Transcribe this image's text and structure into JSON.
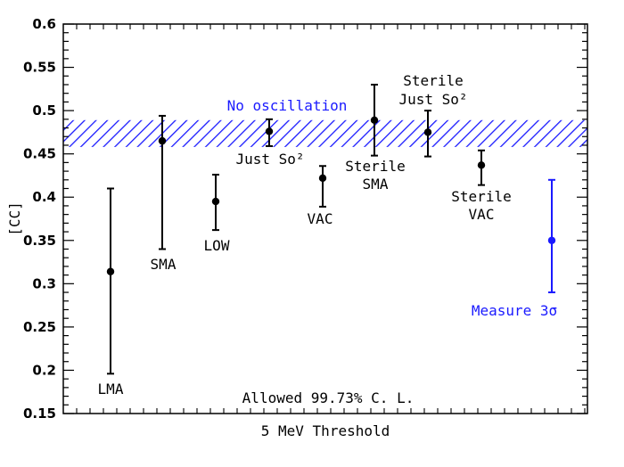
{
  "chart_data": {
    "type": "scatter",
    "title": "",
    "xlabel": "5 MeV Threshold",
    "ylabel": "[CC]",
    "ylim": [
      0.15,
      0.6
    ],
    "y_ticks": [
      "0.15",
      "0.2",
      "0.25",
      "0.3",
      "0.35",
      "0.4",
      "0.45",
      "0.5",
      "0.55",
      "0.6"
    ],
    "grid": false,
    "band": {
      "label": "No oscillation",
      "low": 0.458,
      "high": 0.489,
      "color": "#1a1aff"
    },
    "annotation": "Allowed 99.73% C. L.",
    "points": [
      {
        "label": [
          "LMA"
        ],
        "index": 1,
        "y": 0.314,
        "ylow": 0.196,
        "yhigh": 0.41,
        "color": "#000000"
      },
      {
        "label": [
          "SMA"
        ],
        "index": 2,
        "y": 0.465,
        "ylow": 0.34,
        "yhigh": 0.494,
        "color": "#000000"
      },
      {
        "label": [
          "LOW"
        ],
        "index": 3,
        "y": 0.395,
        "ylow": 0.362,
        "yhigh": 0.426,
        "color": "#000000"
      },
      {
        "label": [
          "Just So²"
        ],
        "index": 4,
        "y": 0.476,
        "ylow": 0.459,
        "yhigh": 0.49,
        "color": "#000000"
      },
      {
        "label": [
          "VAC"
        ],
        "index": 5,
        "y": 0.422,
        "ylow": 0.389,
        "yhigh": 0.436,
        "color": "#000000"
      },
      {
        "label": [
          "Sterile",
          "SMA"
        ],
        "index": 6,
        "y": 0.489,
        "ylow": 0.448,
        "yhigh": 0.53,
        "color": "#000000"
      },
      {
        "label": [
          "Sterile",
          "Just So²"
        ],
        "index": 7,
        "y": 0.475,
        "ylow": 0.447,
        "yhigh": 0.5,
        "color": "#000000"
      },
      {
        "label": [
          "Sterile",
          "VAC"
        ],
        "index": 8,
        "y": 0.437,
        "ylow": 0.414,
        "yhigh": 0.454,
        "color": "#000000"
      },
      {
        "label": [
          "Measure 3σ"
        ],
        "index": 9,
        "y": 0.35,
        "ylow": 0.29,
        "yhigh": 0.42,
        "color": "#1a1aff"
      }
    ]
  }
}
